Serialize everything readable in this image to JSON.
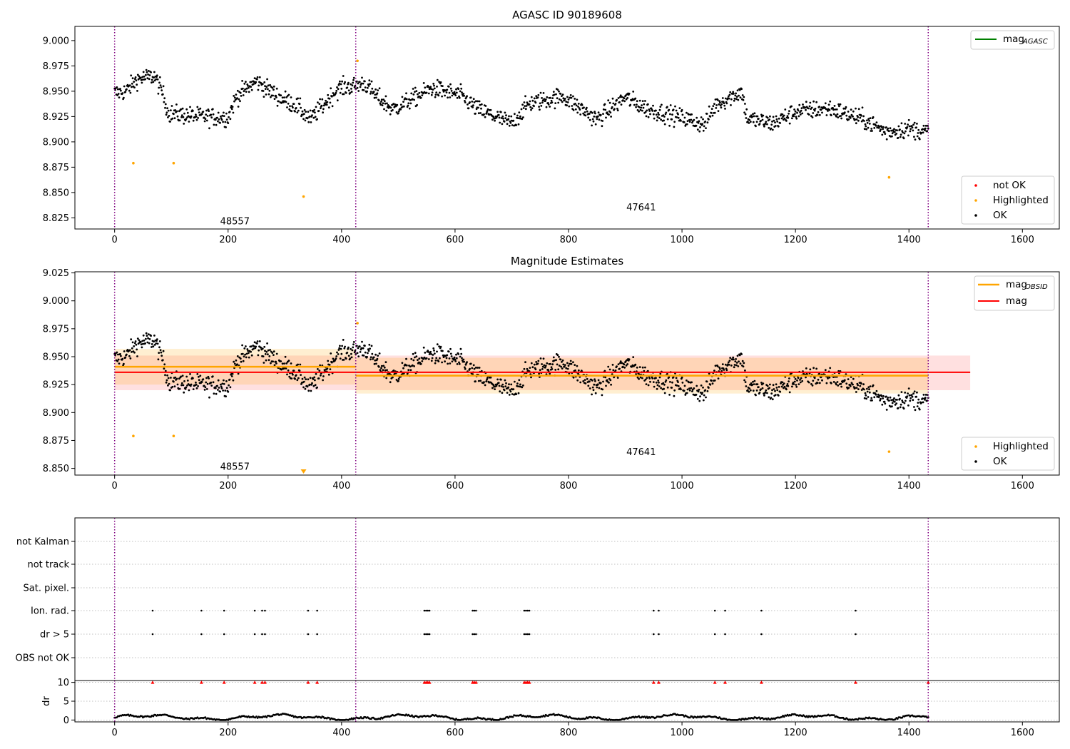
{
  "chart_data": [
    {
      "type": "scatter",
      "title": "AGASC ID 90189608",
      "xlim": [
        -70,
        1665
      ],
      "ylim": [
        8.814,
        9.014
      ],
      "xticks": [
        0,
        200,
        400,
        600,
        800,
        1000,
        1200,
        1400,
        1600
      ],
      "yticks": [
        8.825,
        8.85,
        8.875,
        8.9,
        8.925,
        8.95,
        8.975,
        9.0
      ],
      "obs_boundaries": [
        0,
        425,
        1434
      ],
      "obs_labels": [
        {
          "text": "48557",
          "x": 212,
          "y": 8.822
        },
        {
          "text": "47641",
          "x": 928,
          "y": 8.836
        }
      ],
      "legend_lines": [
        {
          "label": "mag",
          "sub": "AGASC",
          "color": "#008000"
        }
      ],
      "legend_points": [
        {
          "label": "not OK",
          "color": "#ff0000"
        },
        {
          "label": "Highlighted",
          "color": "#ffa500"
        },
        {
          "label": "OK",
          "color": "#000000"
        }
      ],
      "highlighted": {
        "x": [
          33,
          104,
          333,
          428,
          1365
        ],
        "y": [
          8.879,
          8.879,
          8.846,
          8.98,
          8.865
        ]
      }
    },
    {
      "type": "scatter",
      "title": "Magnitude Estimates",
      "xlim": [
        -70,
        1665
      ],
      "ylim": [
        8.844,
        9.026
      ],
      "xticks": [
        0,
        200,
        400,
        600,
        800,
        1000,
        1200,
        1400,
        1600
      ],
      "yticks": [
        8.85,
        8.875,
        8.9,
        8.925,
        8.95,
        8.975,
        9.0,
        9.025
      ],
      "obs_boundaries": [
        0,
        425,
        1434
      ],
      "obs_labels": [
        {
          "text": "48557",
          "x": 212,
          "y": 8.852
        },
        {
          "text": "47641",
          "x": 928,
          "y": 8.865
        }
      ],
      "legend_lines": [
        {
          "label": "mag",
          "sub": "OBSID",
          "color": "#ffa500"
        },
        {
          "label": "mag",
          "sub": "",
          "color": "#ff0000"
        }
      ],
      "legend_points": [
        {
          "label": "Highlighted",
          "color": "#ffa500"
        },
        {
          "label": "OK",
          "color": "#000000"
        }
      ],
      "mag_overall": {
        "value": 8.936,
        "x": [
          0,
          1508
        ],
        "band": [
          8.92,
          8.951
        ]
      },
      "mag_obsid": [
        {
          "x": [
            0,
            425
          ],
          "value": 8.941,
          "band": [
            8.925,
            8.957
          ]
        },
        {
          "x": [
            425,
            1434
          ],
          "value": 8.933,
          "band": [
            8.917,
            8.949
          ]
        }
      ],
      "highlighted": {
        "x": [
          33,
          104,
          428,
          1365
        ],
        "y": [
          8.879,
          8.879,
          8.98,
          8.865
        ]
      },
      "below_axis_marker": {
        "x": 333
      }
    },
    {
      "type": "scatter",
      "xlim": [
        -70,
        1665
      ],
      "xticks": [
        0,
        200,
        400,
        600,
        800,
        1000,
        1200,
        1400,
        1600
      ],
      "flag_rows": [
        "not Kalman",
        "not track",
        "Sat. pixel.",
        "Ion. rad.",
        "dr > 5",
        "OBS not OK"
      ],
      "flag_x": [
        67,
        153,
        193,
        247,
        260,
        265,
        341,
        357,
        546,
        549,
        552,
        555,
        631,
        634,
        637,
        722,
        725,
        728,
        731,
        950,
        959,
        1058,
        1076,
        1140,
        1306
      ],
      "dr_ylabel": "dr",
      "dr_ylim": [
        -0.5,
        10.5
      ],
      "dr_yticks": [
        0,
        5,
        10
      ],
      "dr_flag_x": [
        67,
        153,
        193,
        247,
        260,
        265,
        341,
        357,
        546,
        549,
        552,
        555,
        631,
        634,
        637,
        722,
        725,
        728,
        731,
        950,
        959,
        1058,
        1076,
        1140,
        1306,
        1434
      ]
    }
  ]
}
